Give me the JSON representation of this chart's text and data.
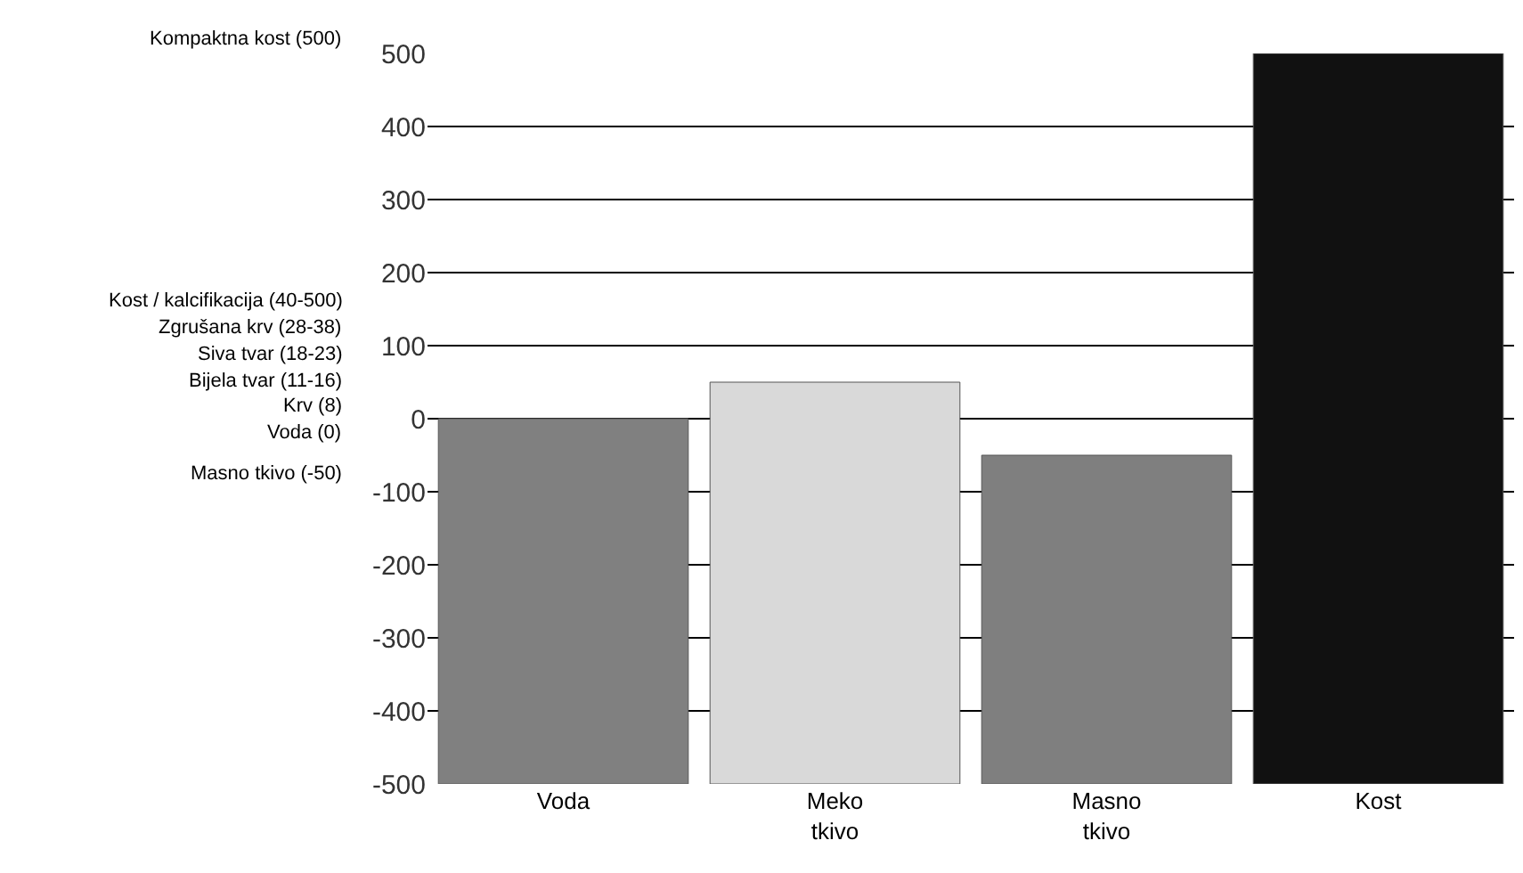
{
  "chart_data": {
    "type": "bar",
    "categories": [
      "Voda",
      "Meko tkivo",
      "Masno tkivo",
      "Kost"
    ],
    "values": [
      500,
      550,
      450,
      1000
    ],
    "base": [
      -500,
      -500,
      -500,
      -500
    ],
    "colors": [
      "#808080",
      "#d9d9d9",
      "#7f7f7f",
      "#111111"
    ],
    "ylim": [
      -500,
      500
    ],
    "yticks": [
      -500,
      -400,
      -300,
      -200,
      -100,
      0,
      100,
      200,
      300,
      400,
      500
    ],
    "grid": "y",
    "annotations": [
      "Kompaktna kost (500)",
      "Kost / kalcifikacija (40-500)",
      "Zgrušana krv (28-38)",
      "Siva tvar (18-23)",
      "Bijela tvar (11-16)",
      "Krv (8)",
      "Voda (0)",
      "Masno tkivo (-50)"
    ]
  }
}
